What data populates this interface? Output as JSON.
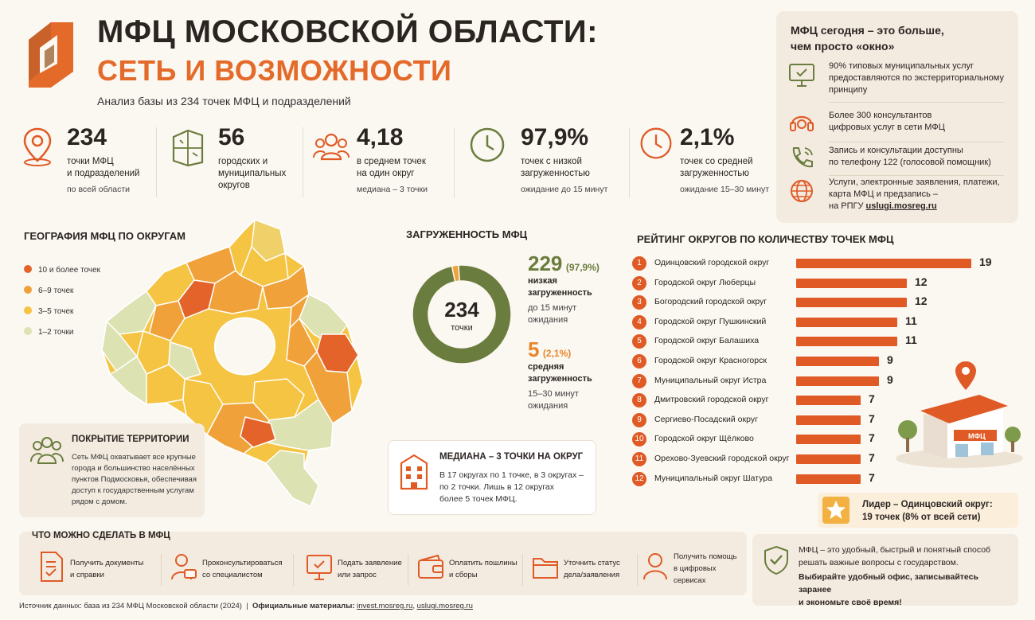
{
  "header": {
    "title_line1": "МФЦ МОСКОВСКОЙ ОБЛАСТИ:",
    "title_line2": "СЕТЬ И ВОЗМОЖНОСТИ",
    "subtitle": "Анализ базы из 234 точек МФЦ и подразделений"
  },
  "stats": [
    {
      "icon": "location-pin-icon",
      "value": "234",
      "label1": "точки МФЦ",
      "label2": "и подразделений",
      "sub": "по всей области"
    },
    {
      "icon": "district-map-icon",
      "value": "56",
      "label1": "городских и",
      "label2": "муниципальных",
      "sub": "округов"
    },
    {
      "icon": "people-icon",
      "value": "4,18",
      "label1": "в среднем точек",
      "label2": "на один округ",
      "sub": "медиана – 3 точки"
    },
    {
      "icon": "clock-icon",
      "value": "97,9%",
      "label1": "точек с низкой",
      "label2": "загруженностью",
      "sub": "ожидание до 15 минут"
    },
    {
      "icon": "clock-icon",
      "value": "2,1%",
      "label1": "точек со средней",
      "label2": "загруженностью",
      "sub": "ожидание 15–30 минут"
    }
  ],
  "today_panel": {
    "title_line1": "МФЦ сегодня – это больше,",
    "title_line2": "чем просто «окно»",
    "items": [
      {
        "icon": "monitor-check-icon",
        "lines": [
          "90% типовых муниципальных услуг",
          "предоставляются по экстерриториальному",
          "принципу"
        ]
      },
      {
        "icon": "headset-icon",
        "lines": [
          "Более 300 консультантов",
          "цифровых услуг в сети МФЦ"
        ]
      },
      {
        "icon": "phone-icon",
        "lines": [
          "Запись и консультации доступны",
          "по телефону 122 (голосовой помощник)"
        ]
      },
      {
        "icon": "globe-icon",
        "lines": [
          "Услуги, электронные заявления, платежи,",
          "карта МФЦ и предзапись –"
        ],
        "last_prefix": "на РПГУ ",
        "link": "uslugi.mosreg.ru"
      }
    ]
  },
  "map_section": {
    "title": "ГЕОГРАФИЯ МФЦ ПО ОКРУГАМ",
    "legend": [
      {
        "label": "10 и более точек",
        "color": "#e4632a"
      },
      {
        "label": "6–9 точек",
        "color": "#f0a13a"
      },
      {
        "label": "3–5 точек",
        "color": "#f5c443"
      },
      {
        "label": "1–2 точки",
        "color": "#dde2b2"
      }
    ]
  },
  "coverage": {
    "title": "ПОКРЫТИЕ ТЕРРИТОРИИ",
    "lines": [
      "Сеть МФЦ охватывает все крупные",
      "города и большинство населённых",
      "пунктов Подмосковья, обеспечивая",
      "доступ к государственным услугам",
      "рядом с домом."
    ]
  },
  "load_section": {
    "title": "ЗАГРУЖЕННОСТЬ МФЦ",
    "center_value": "234",
    "center_label": "точки",
    "low": {
      "value": "229",
      "pct": "(97,9%)",
      "l1": "низкая",
      "l2": "загруженность",
      "s1": "до 15 минут",
      "s2": "ожидания"
    },
    "mid": {
      "value": "5",
      "pct": "(2,1%)",
      "l1": "средняя",
      "l2": "загруженность",
      "s1": "15–30 минут",
      "s2": "ожидания"
    }
  },
  "chart_data": {
    "type": "pie",
    "title": "ЗАГРУЖЕННОСТЬ МФЦ",
    "categories": [
      "низкая загруженность",
      "средняя загруженность"
    ],
    "values": [
      229,
      5
    ],
    "colors": [
      "#6b7d3e",
      "#f0a13a"
    ]
  },
  "median": {
    "title": "МЕДИАНА – 3 ТОЧКИ НА ОКРУГ",
    "lines": [
      "В 17 округах по 1 точке, в 3 округах –",
      "по 2 точки. Лишь в 12 округах",
      "более 5 точек МФЦ."
    ]
  },
  "ranking": {
    "title": "РЕЙТИНГ ОКРУГОВ ПО КОЛИЧЕСТВУ ТОЧЕК МФЦ",
    "max": 19,
    "items": [
      {
        "rank": "1",
        "name": "Одинцовский городской округ",
        "value": 19
      },
      {
        "rank": "2",
        "name": "Городской округ Люберцы",
        "value": 12
      },
      {
        "rank": "3",
        "name": "Богородский городской округ",
        "value": 12
      },
      {
        "rank": "4",
        "name": "Городской округ Пушкинский",
        "value": 11
      },
      {
        "rank": "5",
        "name": "Городской округ Балашиха",
        "value": 11
      },
      {
        "rank": "6",
        "name": "Городской округ Красногорск",
        "value": 9
      },
      {
        "rank": "7",
        "name": "Муниципальный округ Истра",
        "value": 9
      },
      {
        "rank": "8",
        "name": "Дмитровский городской округ",
        "value": 7
      },
      {
        "rank": "9",
        "name": "Сергиево-Посадский округ",
        "value": 7
      },
      {
        "rank": "10",
        "name": "Городской округ Щёлково",
        "value": 7
      },
      {
        "rank": "11",
        "name": "Орехово-Зуевский городской округ",
        "value": 7
      },
      {
        "rank": "12",
        "name": "Муниципальный округ Шатура",
        "value": 7
      }
    ]
  },
  "building_sign": "МФЦ",
  "leader": {
    "line1": "Лидер – Одинцовский округ:",
    "line2": "19 точек (8% от всей сети)"
  },
  "actions": {
    "title": "ЧТО МОЖНО СДЕЛАТЬ В МФЦ",
    "items": [
      {
        "icon": "document-check-icon",
        "lines": [
          "Получить документы",
          "и справки"
        ]
      },
      {
        "icon": "consultant-icon",
        "lines": [
          "Проконсультироваться",
          "со специалистом"
        ]
      },
      {
        "icon": "monitor-check-icon",
        "lines": [
          "Подать заявление",
          "или запрос"
        ]
      },
      {
        "icon": "wallet-icon",
        "lines": [
          "Оплатить пошлины",
          "и сборы"
        ]
      },
      {
        "icon": "folder-icon",
        "lines": [
          "Уточнить статус",
          "дела/заявления"
        ]
      },
      {
        "icon": "user-icon",
        "lines": [
          "Получить помощь",
          "в цифровых",
          "сервисах"
        ]
      }
    ]
  },
  "note": {
    "line1": "МФЦ – это удобный, быстрый и понятный способ",
    "line2": "решать важные вопросы с государством.",
    "bold1": "Выбирайте удобный офис, записывайтесь заранее",
    "bold2": "и экономьте своё время!"
  },
  "footer": {
    "source": "Источник данных: база из 234 МФЦ Московской области (2024)",
    "sep": "|",
    "official_label": "Официальные материалы:",
    "link1": "invest.mosreg.ru",
    "comma": ",",
    "link2": "uslugi.mosreg.ru"
  }
}
